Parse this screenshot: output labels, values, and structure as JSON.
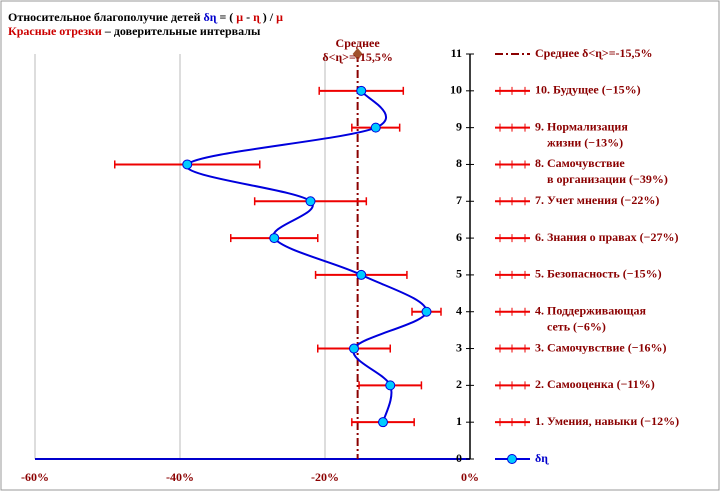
{
  "chart_data": {
    "type": "line",
    "title_parts": [
      {
        "text": "Относительное  благополучие детей ",
        "color": "#000000"
      },
      {
        "text": "δɳ",
        "color": "#0000cc"
      },
      {
        "text": " = ( ",
        "color": "#000000"
      },
      {
        "text": "μ",
        "color": "#cc0000"
      },
      {
        "text": " - ",
        "color": "#000000"
      },
      {
        "text": "ɳ",
        "color": "#cc0000"
      },
      {
        "text": " ) / ",
        "color": "#000000"
      },
      {
        "text": "μ",
        "color": "#cc0000"
      }
    ],
    "subtitle_parts": [
      {
        "text": "Красные отрезки",
        "color": "#cc0000"
      },
      {
        "text": " – доверительные интервалы",
        "color": "#000000"
      }
    ],
    "categories": [
      [
        "1. Умения, навыки (−12%)"
      ],
      [
        "2. Самооценка (−11%)"
      ],
      [
        "3. Самочувствие (−16%)"
      ],
      [
        "4. Поддерживающая",
        "сеть (−6%)"
      ],
      [
        "5. Безопасность (−15%)"
      ],
      [
        "6. Знания о правах (−27%)"
      ],
      [
        "7. Учет мнения (−22%)"
      ],
      [
        "8. Самочувствие",
        "в организации (−39%)"
      ],
      [
        "9. Нормализация",
        "жизни (−13%)"
      ],
      [
        "10. Будущее (−15%)"
      ]
    ],
    "y": [
      1,
      2,
      3,
      4,
      5,
      6,
      7,
      8,
      9,
      10
    ],
    "series": [
      {
        "name": "δɳ",
        "color": "#0000dd",
        "marker_color": "#00ccff",
        "values": [
          -12,
          -11,
          -16,
          -6,
          -15,
          -27,
          -22,
          -39,
          -13,
          -15
        ],
        "errors": [
          4.3,
          4.3,
          5,
          2,
          6.3,
          6,
          7.7,
          10,
          3.3,
          5.8
        ],
        "error_color": "#ee0000"
      }
    ],
    "mean": -15.5,
    "mean_color": "#8b0000",
    "mean_marker_color": "#a0522d",
    "mean_label": [
      "Среднее",
      "δ<ɳ>=-15,5%"
    ],
    "mean_legend": "Среднее δ<ɳ>=-15,5%",
    "xlim": [
      -60,
      0
    ],
    "xticks": [
      {
        "value": -60,
        "label": "-60%"
      },
      {
        "value": -40,
        "label": "-40%"
      },
      {
        "value": -20,
        "label": "-20%"
      },
      {
        "value": 0,
        "label": "0%"
      }
    ],
    "ylim": [
      0,
      11
    ],
    "yticks": [
      0,
      1,
      2,
      3,
      4,
      5,
      6,
      7,
      8,
      9,
      10,
      11
    ],
    "grid": true
  }
}
